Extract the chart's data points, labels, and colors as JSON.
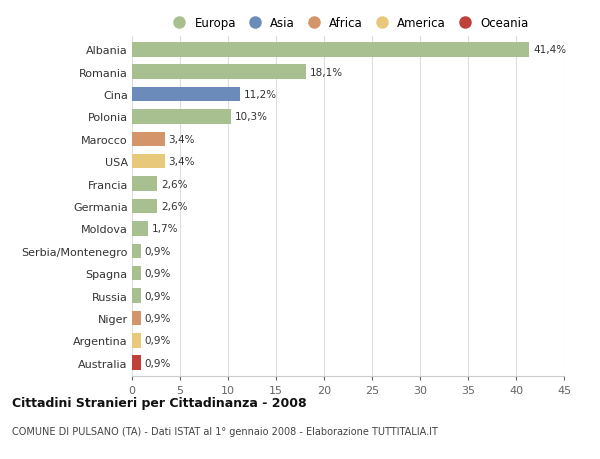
{
  "countries": [
    "Albania",
    "Romania",
    "Cina",
    "Polonia",
    "Marocco",
    "USA",
    "Francia",
    "Germania",
    "Moldova",
    "Serbia/Montenegro",
    "Spagna",
    "Russia",
    "Niger",
    "Argentina",
    "Australia"
  ],
  "values": [
    41.4,
    18.1,
    11.2,
    10.3,
    3.4,
    3.4,
    2.6,
    2.6,
    1.7,
    0.9,
    0.9,
    0.9,
    0.9,
    0.9,
    0.9
  ],
  "labels": [
    "41,4%",
    "18,1%",
    "11,2%",
    "10,3%",
    "3,4%",
    "3,4%",
    "2,6%",
    "2,6%",
    "1,7%",
    "0,9%",
    "0,9%",
    "0,9%",
    "0,9%",
    "0,9%",
    "0,9%"
  ],
  "colors": [
    "#a8c090",
    "#a8c090",
    "#6b8cba",
    "#a8c090",
    "#d4956a",
    "#e8c87a",
    "#a8c090",
    "#a8c090",
    "#a8c090",
    "#a8c090",
    "#a8c090",
    "#a8c090",
    "#d4956a",
    "#e8c87a",
    "#c0413a"
  ],
  "continent_colors": {
    "Europa": "#a8c090",
    "Asia": "#6b8cba",
    "Africa": "#d4956a",
    "America": "#e8c87a",
    "Oceania": "#c0413a"
  },
  "title": "Cittadini Stranieri per Cittadinanza - 2008",
  "subtitle": "COMUNE DI PULSANO (TA) - Dati ISTAT al 1° gennaio 2008 - Elaborazione TUTTITALIA.IT",
  "xlim": [
    0,
    45
  ],
  "xticks": [
    0,
    5,
    10,
    15,
    20,
    25,
    30,
    35,
    40,
    45
  ],
  "bg_color": "#ffffff",
  "grid_color": "#dddddd"
}
